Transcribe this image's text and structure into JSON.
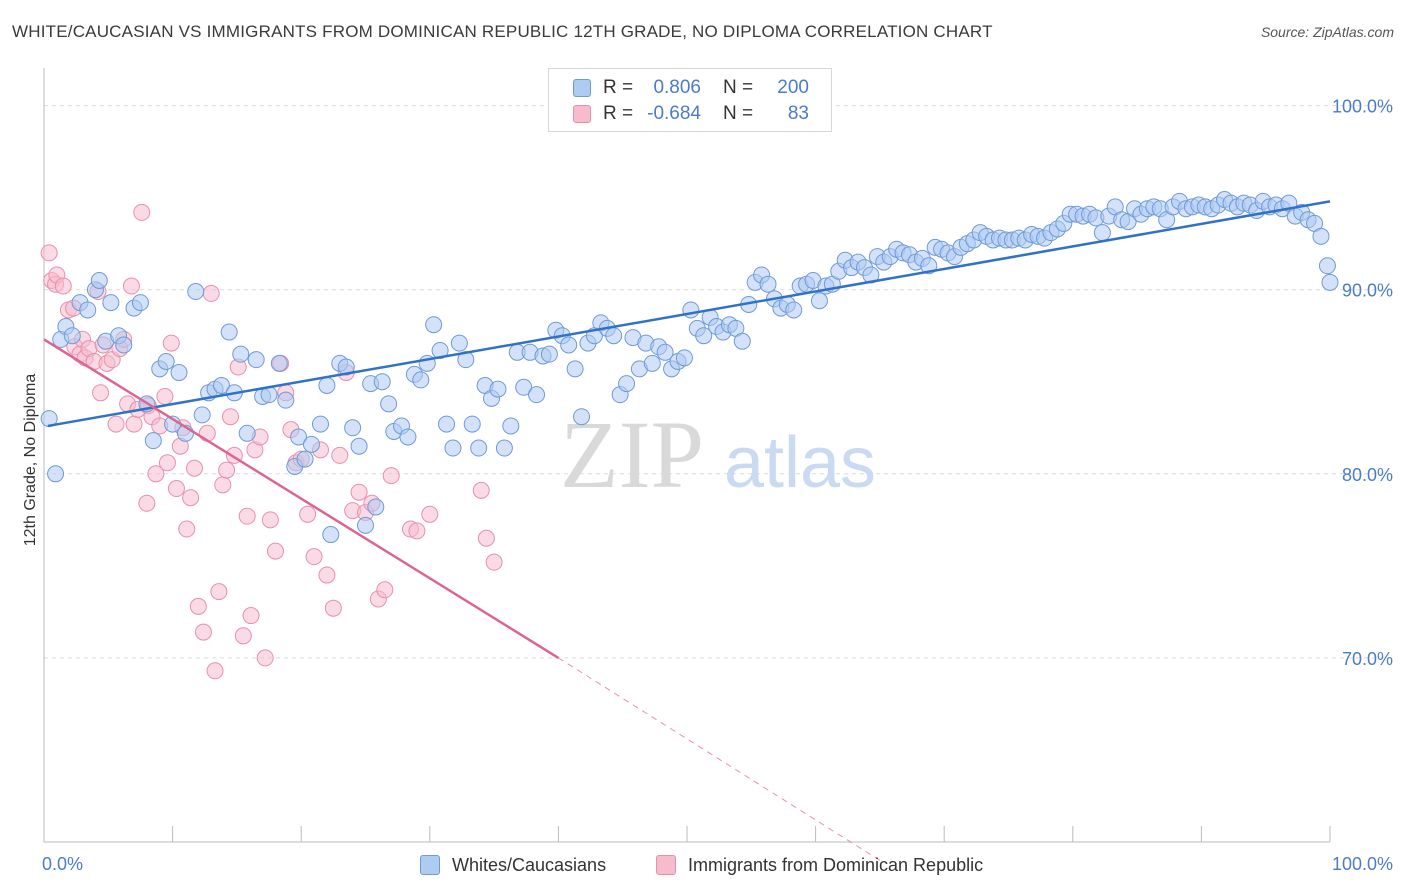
{
  "title": "WHITE/CAUCASIAN VS IMMIGRANTS FROM DOMINICAN REPUBLIC 12TH GRADE, NO DIPLOMA CORRELATION CHART",
  "source": "Source: ZipAtlas.com",
  "watermark": {
    "zip": "ZIP",
    "atlas": "atlas"
  },
  "legend": {
    "r_label": "R =",
    "n_label": "N =",
    "rows": [
      {
        "r": "0.806",
        "n": "200",
        "color": "#aecbf2"
      },
      {
        "r": "-0.684",
        "n": "83",
        "color": "#f6bccd"
      }
    ]
  },
  "bottom_legend": {
    "blue": "Whites/Caucasians",
    "pink": "Immigrants from Dominican Republic"
  },
  "colors": {
    "blue_fill": "#aecbf2",
    "blue_edge": "#6f9ad8",
    "blue_line": "#2f72c8",
    "pink_fill": "#f6bccd",
    "pink_edge": "#e890ab",
    "pink_line": "#dc6492",
    "tick_label": "#4a7cc9"
  },
  "chart_data": {
    "type": "scatter",
    "xlabel": "",
    "ylabel": "12th Grade, No Diploma",
    "x_tick_labels": [
      "0.0%",
      "100.0%"
    ],
    "y_tick_labels": [
      "100.0%",
      "90.0%",
      "80.0%",
      "70.0%"
    ],
    "xlim": [
      0,
      100
    ],
    "ylim": [
      60,
      101.5
    ],
    "grid": true,
    "legend_position": "top-center",
    "series": [
      {
        "name": "Whites/Caucasians",
        "trend": [
          [
            0.3,
            82.6
          ],
          [
            100,
            94.8
          ]
        ],
        "points": [
          [
            0.4,
            83.0
          ],
          [
            0.9,
            80.0
          ],
          [
            1.3,
            87.3
          ],
          [
            1.7,
            88.0
          ],
          [
            2.2,
            87.5
          ],
          [
            2.8,
            89.3
          ],
          [
            3.4,
            88.9
          ],
          [
            4.0,
            90.0
          ],
          [
            4.3,
            90.5
          ],
          [
            4.8,
            87.2
          ],
          [
            5.2,
            89.3
          ],
          [
            5.8,
            87.5
          ],
          [
            6.2,
            87.0
          ],
          [
            7.0,
            89.0
          ],
          [
            7.5,
            89.3
          ],
          [
            8.0,
            83.8
          ],
          [
            8.5,
            81.8
          ],
          [
            9.0,
            85.7
          ],
          [
            9.5,
            86.1
          ],
          [
            10.0,
            82.7
          ],
          [
            10.5,
            85.5
          ],
          [
            11.0,
            82.2
          ],
          [
            11.8,
            89.9
          ],
          [
            12.3,
            83.2
          ],
          [
            12.8,
            84.4
          ],
          [
            13.3,
            84.6
          ],
          [
            13.8,
            84.8
          ],
          [
            14.4,
            87.7
          ],
          [
            14.8,
            84.4
          ],
          [
            15.3,
            86.5
          ],
          [
            15.8,
            82.2
          ],
          [
            16.5,
            86.2
          ],
          [
            17.0,
            84.2
          ],
          [
            17.5,
            84.3
          ],
          [
            18.3,
            86.0
          ],
          [
            18.8,
            84.0
          ],
          [
            19.5,
            80.4
          ],
          [
            19.8,
            82.0
          ],
          [
            20.3,
            80.8
          ],
          [
            20.8,
            81.6
          ],
          [
            21.5,
            82.7
          ],
          [
            22.0,
            84.8
          ],
          [
            22.3,
            76.7
          ],
          [
            23.0,
            86.0
          ],
          [
            23.5,
            85.8
          ],
          [
            24.0,
            82.5
          ],
          [
            24.5,
            81.5
          ],
          [
            25.0,
            77.2
          ],
          [
            25.4,
            84.9
          ],
          [
            25.8,
            78.2
          ],
          [
            26.3,
            85.0
          ],
          [
            26.8,
            83.8
          ],
          [
            27.2,
            82.3
          ],
          [
            27.8,
            82.6
          ],
          [
            28.3,
            82.0
          ],
          [
            28.8,
            85.4
          ],
          [
            29.3,
            85.1
          ],
          [
            29.8,
            86.0
          ],
          [
            30.3,
            88.1
          ],
          [
            30.8,
            86.7
          ],
          [
            31.3,
            82.7
          ],
          [
            31.8,
            81.4
          ],
          [
            32.3,
            87.1
          ],
          [
            32.8,
            86.2
          ],
          [
            33.3,
            82.7
          ],
          [
            33.8,
            81.4
          ],
          [
            34.3,
            84.8
          ],
          [
            34.8,
            84.1
          ],
          [
            35.3,
            84.6
          ],
          [
            35.8,
            81.4
          ],
          [
            36.3,
            82.6
          ],
          [
            36.8,
            86.6
          ],
          [
            37.3,
            84.7
          ],
          [
            37.8,
            86.6
          ],
          [
            38.3,
            84.3
          ],
          [
            38.8,
            86.4
          ],
          [
            39.3,
            86.5
          ],
          [
            39.8,
            87.8
          ],
          [
            40.3,
            87.5
          ],
          [
            40.8,
            87.0
          ],
          [
            41.3,
            85.7
          ],
          [
            41.8,
            83.1
          ],
          [
            42.3,
            87.1
          ],
          [
            42.8,
            87.5
          ],
          [
            43.3,
            88.2
          ],
          [
            43.8,
            87.9
          ],
          [
            44.3,
            87.5
          ],
          [
            44.8,
            84.3
          ],
          [
            45.3,
            84.9
          ],
          [
            45.8,
            87.4
          ],
          [
            46.3,
            85.7
          ],
          [
            46.8,
            87.1
          ],
          [
            47.3,
            86.0
          ],
          [
            47.8,
            86.9
          ],
          [
            48.3,
            86.6
          ],
          [
            48.8,
            85.7
          ],
          [
            49.3,
            86.1
          ],
          [
            49.8,
            86.3
          ],
          [
            50.3,
            88.9
          ],
          [
            50.8,
            87.9
          ],
          [
            51.3,
            87.5
          ],
          [
            51.8,
            88.5
          ],
          [
            52.3,
            88.0
          ],
          [
            52.8,
            87.7
          ],
          [
            53.3,
            88.1
          ],
          [
            53.8,
            87.9
          ],
          [
            54.3,
            87.2
          ],
          [
            54.8,
            89.2
          ],
          [
            55.3,
            90.4
          ],
          [
            55.8,
            90.8
          ],
          [
            56.3,
            90.3
          ],
          [
            56.8,
            89.5
          ],
          [
            57.3,
            89.0
          ],
          [
            57.8,
            89.2
          ],
          [
            58.3,
            88.9
          ],
          [
            58.8,
            90.2
          ],
          [
            59.3,
            90.3
          ],
          [
            59.8,
            90.5
          ],
          [
            60.3,
            89.4
          ],
          [
            60.8,
            90.2
          ],
          [
            61.3,
            90.3
          ],
          [
            61.8,
            91.0
          ],
          [
            62.3,
            91.6
          ],
          [
            62.8,
            91.2
          ],
          [
            63.3,
            91.5
          ],
          [
            63.8,
            91.2
          ],
          [
            64.3,
            90.8
          ],
          [
            64.8,
            91.8
          ],
          [
            65.3,
            91.5
          ],
          [
            65.8,
            91.8
          ],
          [
            66.3,
            92.2
          ],
          [
            66.8,
            92.0
          ],
          [
            67.3,
            91.9
          ],
          [
            67.8,
            91.5
          ],
          [
            68.3,
            91.7
          ],
          [
            68.8,
            91.3
          ],
          [
            69.3,
            92.3
          ],
          [
            69.8,
            92.2
          ],
          [
            70.3,
            92.0
          ],
          [
            70.8,
            91.8
          ],
          [
            71.3,
            92.3
          ],
          [
            71.8,
            92.5
          ],
          [
            72.3,
            92.7
          ],
          [
            72.8,
            93.1
          ],
          [
            73.3,
            92.9
          ],
          [
            73.8,
            92.7
          ],
          [
            74.3,
            92.8
          ],
          [
            74.8,
            92.7
          ],
          [
            75.3,
            92.7
          ],
          [
            75.8,
            92.8
          ],
          [
            76.3,
            92.7
          ],
          [
            76.8,
            93.0
          ],
          [
            77.3,
            92.9
          ],
          [
            77.8,
            92.8
          ],
          [
            78.3,
            93.1
          ],
          [
            78.8,
            93.3
          ],
          [
            79.3,
            93.6
          ],
          [
            79.8,
            94.1
          ],
          [
            80.3,
            94.1
          ],
          [
            80.8,
            94.0
          ],
          [
            81.3,
            94.1
          ],
          [
            81.8,
            93.9
          ],
          [
            82.3,
            93.1
          ],
          [
            82.8,
            94.0
          ],
          [
            83.3,
            94.5
          ],
          [
            83.8,
            93.8
          ],
          [
            84.3,
            93.7
          ],
          [
            84.8,
            94.4
          ],
          [
            85.3,
            94.1
          ],
          [
            85.8,
            94.4
          ],
          [
            86.3,
            94.5
          ],
          [
            86.8,
            94.4
          ],
          [
            87.3,
            93.8
          ],
          [
            87.8,
            94.5
          ],
          [
            88.3,
            94.8
          ],
          [
            88.8,
            94.4
          ],
          [
            89.3,
            94.5
          ],
          [
            89.8,
            94.6
          ],
          [
            90.3,
            94.5
          ],
          [
            90.8,
            94.4
          ],
          [
            91.3,
            94.6
          ],
          [
            91.8,
            94.9
          ],
          [
            92.3,
            94.7
          ],
          [
            92.8,
            94.5
          ],
          [
            93.3,
            94.7
          ],
          [
            93.8,
            94.6
          ],
          [
            94.3,
            94.3
          ],
          [
            94.8,
            94.8
          ],
          [
            95.3,
            94.5
          ],
          [
            95.8,
            94.6
          ],
          [
            96.3,
            94.4
          ],
          [
            96.8,
            94.7
          ],
          [
            97.3,
            94.0
          ],
          [
            97.8,
            94.2
          ],
          [
            98.3,
            93.8
          ],
          [
            98.8,
            93.6
          ],
          [
            99.3,
            92.9
          ],
          [
            99.8,
            91.3
          ],
          [
            100.0,
            90.4
          ]
        ]
      },
      {
        "name": "Immigrants from Dominican Republic",
        "trend": [
          [
            0.0,
            87.3
          ],
          [
            40.0,
            70.0
          ]
        ],
        "trend_extension": [
          [
            40.0,
            70.0
          ],
          [
            65.0,
            59.0
          ]
        ],
        "points": [
          [
            0.4,
            92.0
          ],
          [
            0.6,
            90.5
          ],
          [
            0.9,
            90.3
          ],
          [
            1.0,
            90.8
          ],
          [
            1.5,
            90.2
          ],
          [
            1.9,
            88.9
          ],
          [
            2.3,
            89.0
          ],
          [
            2.4,
            86.9
          ],
          [
            2.8,
            86.5
          ],
          [
            3.0,
            87.3
          ],
          [
            3.2,
            86.3
          ],
          [
            3.5,
            86.8
          ],
          [
            3.9,
            86.1
          ],
          [
            4.2,
            89.9
          ],
          [
            4.4,
            84.4
          ],
          [
            4.6,
            87.0
          ],
          [
            4.9,
            86.0
          ],
          [
            5.3,
            86.2
          ],
          [
            5.6,
            82.7
          ],
          [
            5.9,
            86.8
          ],
          [
            6.2,
            87.3
          ],
          [
            6.5,
            83.8
          ],
          [
            6.8,
            90.2
          ],
          [
            7.0,
            82.7
          ],
          [
            7.3,
            83.5
          ],
          [
            7.6,
            94.2
          ],
          [
            8.0,
            78.4
          ],
          [
            8.1,
            83.7
          ],
          [
            8.4,
            83.1
          ],
          [
            8.7,
            80.0
          ],
          [
            9.0,
            82.6
          ],
          [
            9.4,
            84.2
          ],
          [
            9.6,
            80.6
          ],
          [
            9.9,
            87.1
          ],
          [
            10.3,
            79.2
          ],
          [
            10.6,
            81.5
          ],
          [
            10.8,
            82.5
          ],
          [
            11.1,
            77.0
          ],
          [
            11.4,
            78.7
          ],
          [
            11.7,
            80.3
          ],
          [
            12.0,
            72.8
          ],
          [
            12.4,
            71.4
          ],
          [
            12.7,
            82.2
          ],
          [
            13.0,
            89.8
          ],
          [
            13.3,
            69.3
          ],
          [
            13.6,
            73.6
          ],
          [
            13.9,
            79.4
          ],
          [
            14.2,
            80.2
          ],
          [
            14.5,
            83.1
          ],
          [
            14.8,
            81.0
          ],
          [
            15.1,
            85.8
          ],
          [
            15.5,
            71.2
          ],
          [
            15.8,
            77.7
          ],
          [
            16.1,
            72.3
          ],
          [
            16.4,
            81.3
          ],
          [
            16.8,
            82.0
          ],
          [
            17.2,
            70.0
          ],
          [
            17.6,
            77.5
          ],
          [
            18.0,
            75.8
          ],
          [
            18.4,
            86.0
          ],
          [
            18.8,
            84.4
          ],
          [
            19.2,
            82.4
          ],
          [
            19.6,
            80.6
          ],
          [
            20.0,
            80.8
          ],
          [
            20.5,
            77.8
          ],
          [
            21.0,
            75.5
          ],
          [
            21.5,
            81.3
          ],
          [
            22.0,
            74.5
          ],
          [
            22.5,
            72.7
          ],
          [
            23.0,
            81.0
          ],
          [
            23.5,
            85.5
          ],
          [
            24.0,
            78.0
          ],
          [
            24.5,
            79.0
          ],
          [
            25.0,
            77.9
          ],
          [
            25.5,
            78.4
          ],
          [
            26.0,
            73.2
          ],
          [
            26.5,
            73.7
          ],
          [
            27.0,
            79.9
          ],
          [
            28.5,
            77.0
          ],
          [
            29.0,
            76.9
          ],
          [
            30.0,
            77.8
          ],
          [
            34.0,
            79.1
          ],
          [
            34.4,
            76.5
          ],
          [
            35.0,
            75.2
          ]
        ]
      }
    ]
  }
}
